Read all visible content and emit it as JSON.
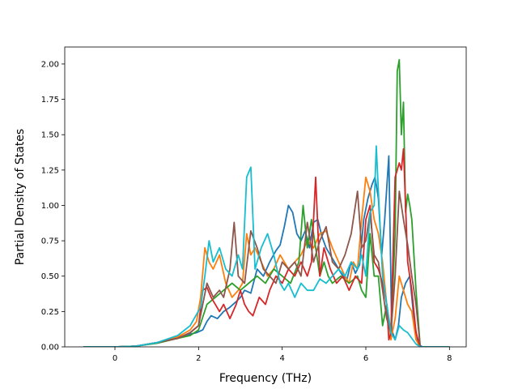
{
  "chart_data": {
    "type": "line",
    "xlabel": "Frequency (THz)",
    "ylabel": "Partial Density of States",
    "xlim": [
      -1.2,
      8.4
    ],
    "ylim": [
      0,
      2.12
    ],
    "xticks": [
      0,
      2,
      4,
      6,
      8
    ],
    "xtick_labels": [
      "0",
      "2",
      "4",
      "6",
      "8"
    ],
    "yticks": [
      0,
      0.25,
      0.5,
      0.75,
      1.0,
      1.25,
      1.5,
      1.75,
      2.0
    ],
    "ytick_labels": [
      "0.00",
      "0.25",
      "0.50",
      "0.75",
      "1.00",
      "1.25",
      "1.50",
      "1.75",
      "2.00"
    ],
    "grid": false,
    "series": [
      {
        "color": "#1f77b4",
        "x": [
          -0.75,
          0,
          0.5,
          1.0,
          1.5,
          1.8,
          1.95,
          2.1,
          2.2,
          2.3,
          2.45,
          2.6,
          2.75,
          2.9,
          3.0,
          3.1,
          3.25,
          3.4,
          3.55,
          3.7,
          3.85,
          3.95,
          4.05,
          4.15,
          4.25,
          4.35,
          4.45,
          4.55,
          4.65,
          4.75,
          4.85,
          4.95,
          5.05,
          5.15,
          5.25,
          5.35,
          5.45,
          5.55,
          5.65,
          5.75,
          5.85,
          5.95,
          6.05,
          6.15,
          6.22,
          6.3,
          6.38,
          6.45,
          6.55,
          6.62,
          6.7,
          6.78,
          6.85,
          6.95,
          7.05,
          7.15,
          7.25,
          7.35,
          8.0
        ],
        "y": [
          0,
          0,
          0.005,
          0.03,
          0.06,
          0.09,
          0.1,
          0.12,
          0.18,
          0.22,
          0.2,
          0.25,
          0.28,
          0.32,
          0.35,
          0.4,
          0.38,
          0.55,
          0.5,
          0.6,
          0.68,
          0.72,
          0.85,
          1.0,
          0.95,
          0.8,
          0.75,
          0.82,
          0.7,
          0.88,
          0.9,
          0.78,
          0.7,
          0.65,
          0.6,
          0.55,
          0.5,
          0.48,
          0.6,
          0.52,
          0.58,
          0.9,
          1.05,
          1.15,
          1.2,
          1.05,
          0.65,
          0.9,
          1.35,
          0.12,
          0.05,
          0.15,
          0.35,
          0.45,
          0.5,
          0.2,
          0.02,
          0,
          0
        ]
      },
      {
        "color": "#ff7f0e",
        "x": [
          -0.75,
          0,
          0.5,
          1.0,
          1.5,
          1.8,
          1.95,
          2.05,
          2.15,
          2.25,
          2.35,
          2.5,
          2.65,
          2.8,
          2.95,
          3.05,
          3.15,
          3.25,
          3.35,
          3.5,
          3.65,
          3.8,
          3.95,
          4.05,
          4.15,
          4.3,
          4.45,
          4.6,
          4.75,
          4.9,
          5.05,
          5.2,
          5.35,
          5.5,
          5.6,
          5.7,
          5.8,
          5.9,
          6.0,
          6.1,
          6.2,
          6.3,
          6.4,
          6.5,
          6.6,
          6.7,
          6.8,
          6.9,
          7.0,
          7.1,
          7.2,
          7.3,
          8.0
        ],
        "y": [
          0,
          0,
          0.005,
          0.03,
          0.07,
          0.12,
          0.18,
          0.35,
          0.7,
          0.6,
          0.55,
          0.65,
          0.45,
          0.35,
          0.4,
          0.45,
          0.8,
          0.65,
          0.7,
          0.6,
          0.5,
          0.55,
          0.65,
          0.6,
          0.55,
          0.6,
          0.65,
          0.75,
          0.7,
          0.8,
          0.82,
          0.7,
          0.6,
          0.5,
          0.45,
          0.6,
          0.55,
          0.9,
          1.2,
          1.1,
          0.9,
          0.8,
          0.6,
          0.3,
          0.05,
          0.2,
          0.5,
          0.4,
          0.3,
          0.25,
          0.05,
          0,
          0
        ]
      },
      {
        "color": "#2ca02c",
        "x": [
          -0.75,
          0,
          0.5,
          1.0,
          1.5,
          1.8,
          2.0,
          2.2,
          2.4,
          2.6,
          2.8,
          3.0,
          3.2,
          3.4,
          3.6,
          3.8,
          4.0,
          4.2,
          4.4,
          4.5,
          4.6,
          4.7,
          4.8,
          4.9,
          5.0,
          5.1,
          5.2,
          5.4,
          5.6,
          5.8,
          5.9,
          6.0,
          6.1,
          6.2,
          6.3,
          6.4,
          6.5,
          6.6,
          6.7,
          6.75,
          6.8,
          6.85,
          6.9,
          6.95,
          7.0,
          7.05,
          7.1,
          7.2,
          7.3,
          8.0
        ],
        "y": [
          0,
          0,
          0.005,
          0.025,
          0.06,
          0.08,
          0.12,
          0.3,
          0.35,
          0.4,
          0.45,
          0.4,
          0.45,
          0.5,
          0.45,
          0.55,
          0.5,
          0.45,
          0.6,
          1.0,
          0.7,
          0.9,
          0.7,
          0.5,
          0.6,
          0.5,
          0.45,
          0.5,
          0.45,
          0.5,
          0.4,
          0.35,
          0.8,
          0.5,
          0.5,
          0.15,
          0.3,
          0.1,
          0.8,
          1.95,
          2.03,
          1.5,
          1.73,
          0.95,
          1.08,
          1.0,
          0.9,
          0.4,
          0,
          0
        ]
      },
      {
        "color": "#d62728",
        "x": [
          -0.75,
          0,
          0.5,
          1.0,
          1.5,
          1.8,
          2.0,
          2.1,
          2.2,
          2.3,
          2.4,
          2.5,
          2.6,
          2.75,
          2.9,
          3.0,
          3.1,
          3.2,
          3.3,
          3.45,
          3.6,
          3.7,
          3.85,
          4.0,
          4.15,
          4.3,
          4.45,
          4.6,
          4.7,
          4.8,
          4.9,
          5.0,
          5.15,
          5.3,
          5.45,
          5.6,
          5.75,
          5.9,
          6.0,
          6.1,
          6.2,
          6.3,
          6.4,
          6.5,
          6.55,
          6.6,
          6.7,
          6.8,
          6.85,
          6.9,
          7.0,
          7.1,
          7.2,
          7.3,
          8.0
        ],
        "y": [
          0,
          0,
          0.005,
          0.03,
          0.06,
          0.1,
          0.15,
          0.4,
          0.42,
          0.35,
          0.3,
          0.25,
          0.3,
          0.2,
          0.3,
          0.4,
          0.3,
          0.25,
          0.22,
          0.35,
          0.3,
          0.4,
          0.5,
          0.45,
          0.55,
          0.5,
          0.6,
          0.5,
          0.6,
          1.2,
          0.5,
          0.7,
          0.55,
          0.45,
          0.5,
          0.4,
          0.5,
          0.45,
          0.9,
          1.0,
          0.6,
          0.55,
          0.45,
          0.3,
          0.05,
          0.1,
          1.2,
          1.3,
          1.25,
          1.4,
          0.6,
          0.4,
          0.1,
          0,
          0
        ]
      },
      {
        "color": "#8c564b",
        "x": [
          -0.75,
          0,
          0.5,
          1.0,
          1.5,
          1.8,
          2.0,
          2.1,
          2.2,
          2.35,
          2.5,
          2.6,
          2.75,
          2.85,
          2.95,
          3.1,
          3.25,
          3.4,
          3.55,
          3.7,
          3.85,
          4.0,
          4.15,
          4.3,
          4.45,
          4.6,
          4.75,
          4.9,
          5.05,
          5.2,
          5.35,
          5.5,
          5.65,
          5.8,
          5.9,
          6.0,
          6.1,
          6.2,
          6.3,
          6.4,
          6.5,
          6.6,
          6.7,
          6.8,
          6.9,
          7.0,
          7.1,
          7.2,
          7.3,
          8.0
        ],
        "y": [
          0,
          0,
          0.005,
          0.03,
          0.06,
          0.1,
          0.15,
          0.3,
          0.45,
          0.35,
          0.4,
          0.35,
          0.55,
          0.88,
          0.5,
          0.45,
          0.82,
          0.7,
          0.55,
          0.5,
          0.45,
          0.6,
          0.55,
          0.6,
          0.5,
          0.88,
          0.6,
          0.75,
          0.85,
          0.6,
          0.55,
          0.65,
          0.8,
          1.1,
          0.7,
          0.75,
          0.95,
          0.65,
          0.6,
          0.4,
          0.2,
          0.1,
          0.5,
          1.1,
          0.9,
          0.72,
          0.5,
          0.3,
          0,
          0
        ]
      },
      {
        "color": "#17becf",
        "x": [
          -0.75,
          0,
          0.5,
          1.0,
          1.5,
          1.8,
          1.95,
          2.05,
          2.15,
          2.25,
          2.35,
          2.5,
          2.65,
          2.8,
          2.95,
          3.05,
          3.15,
          3.25,
          3.35,
          3.5,
          3.65,
          3.8,
          3.95,
          4.05,
          4.15,
          4.3,
          4.45,
          4.6,
          4.75,
          4.9,
          5.05,
          5.2,
          5.35,
          5.5,
          5.65,
          5.8,
          5.9,
          6.0,
          6.1,
          6.2,
          6.25,
          6.3,
          6.4,
          6.5,
          6.6,
          6.7,
          6.8,
          6.9,
          7.0,
          7.1,
          7.2,
          7.3,
          8.0
        ],
        "y": [
          0,
          0,
          0.005,
          0.03,
          0.08,
          0.15,
          0.23,
          0.28,
          0.5,
          0.75,
          0.6,
          0.7,
          0.55,
          0.5,
          0.65,
          0.55,
          1.2,
          1.27,
          0.55,
          0.7,
          0.8,
          0.65,
          0.45,
          0.4,
          0.45,
          0.35,
          0.45,
          0.4,
          0.4,
          0.48,
          0.45,
          0.5,
          0.55,
          0.5,
          0.6,
          0.55,
          0.65,
          0.5,
          0.95,
          1.0,
          1.42,
          1.1,
          0.5,
          0.3,
          0.1,
          0.05,
          0.15,
          0.12,
          0.1,
          0.06,
          0.02,
          0,
          0
        ]
      }
    ]
  }
}
